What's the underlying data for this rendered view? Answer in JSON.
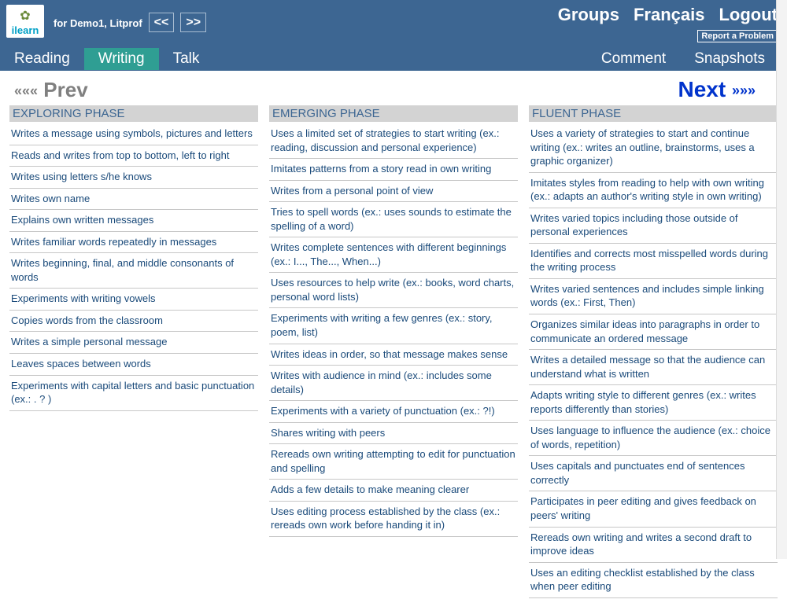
{
  "header": {
    "logo_letter": "i",
    "logo_word": "learn",
    "for_label": "for Demo1, Litprof",
    "prev_arrows": "<<",
    "next_arrows": ">>",
    "links": {
      "groups": "Groups",
      "francais": "Français",
      "logout": "Logout"
    },
    "report": "Report a Problem"
  },
  "tabs": {
    "reading": "Reading",
    "writing": "Writing",
    "talk": "Talk",
    "comment": "Comment",
    "snapshots": "Snapshots"
  },
  "pager": {
    "prev_arrows": "«««",
    "prev_label": "Prev",
    "next_label": "Next",
    "next_arrows": "»»»"
  },
  "phases": {
    "exploring": {
      "title": "EXPLORING PHASE",
      "items": [
        "Writes a message using symbols, pictures and letters",
        "Reads and writes from top to bottom, left to right",
        "Writes using letters s/he knows",
        "Writes own name",
        "Explains own written messages",
        "Writes familiar words repeatedly in messages",
        "Writes beginning, final, and middle consonants of words",
        "Experiments with writing vowels",
        "Copies words from the classroom",
        "Writes a simple personal message",
        "Leaves spaces between words",
        "Experiments with capital letters and basic punctuation (ex.: . ? )"
      ]
    },
    "emerging": {
      "title": "EMERGING PHASE",
      "items": [
        "Uses a limited set of strategies to start writing (ex.: reading, discussion and personal experience)",
        "Imitates patterns from a story read in own writing",
        "Writes from a personal point of view",
        "Tries to spell words (ex.: uses sounds to estimate the spelling of a word)",
        "Writes complete sentences with different beginnings (ex.: I..., The..., When...)",
        "Uses resources to help write (ex.: books, word charts, personal word lists)",
        "Experiments with writing a few genres (ex.: story, poem, list)",
        "Writes ideas in order, so that message makes sense",
        "Writes with audience in mind (ex.: includes some details)",
        "Experiments with a variety of punctuation (ex.: ?!)",
        "Shares writing with peers",
        "Rereads own writing attempting to edit for punctuation and spelling",
        "Adds a few details to make meaning clearer",
        "Uses editing process established by the class (ex.: rereads own work before handing it in)"
      ]
    },
    "fluent": {
      "title": "FLUENT PHASE",
      "items": [
        "Uses a variety of strategies to start and continue writing (ex.: writes an outline, brainstorms, uses a graphic organizer)",
        "Imitates styles from reading to help with own writing (ex.: adapts an author's writing style in own writing)",
        "Writes varied topics including those outside of personal experiences",
        "Identifies and corrects most misspelled words during the writing process",
        "Writes varied sentences and includes simple linking words (ex.: First, Then)",
        "Organizes similar ideas into paragraphs in order to communicate an ordered message",
        "Writes a detailed message so that the audience can understand what is written",
        "Adapts writing style to different genres (ex.: writes reports differently than stories)",
        "Uses language to influence the audience (ex.: choice of words, repetition)",
        "Uses capitals and punctuates end of sentences correctly",
        "Participates in peer editing and gives feedback on peers' writing",
        "Rereads own writing and writes a second draft to improve ideas",
        "Uses an editing checklist established by the class when peer editing"
      ]
    }
  }
}
